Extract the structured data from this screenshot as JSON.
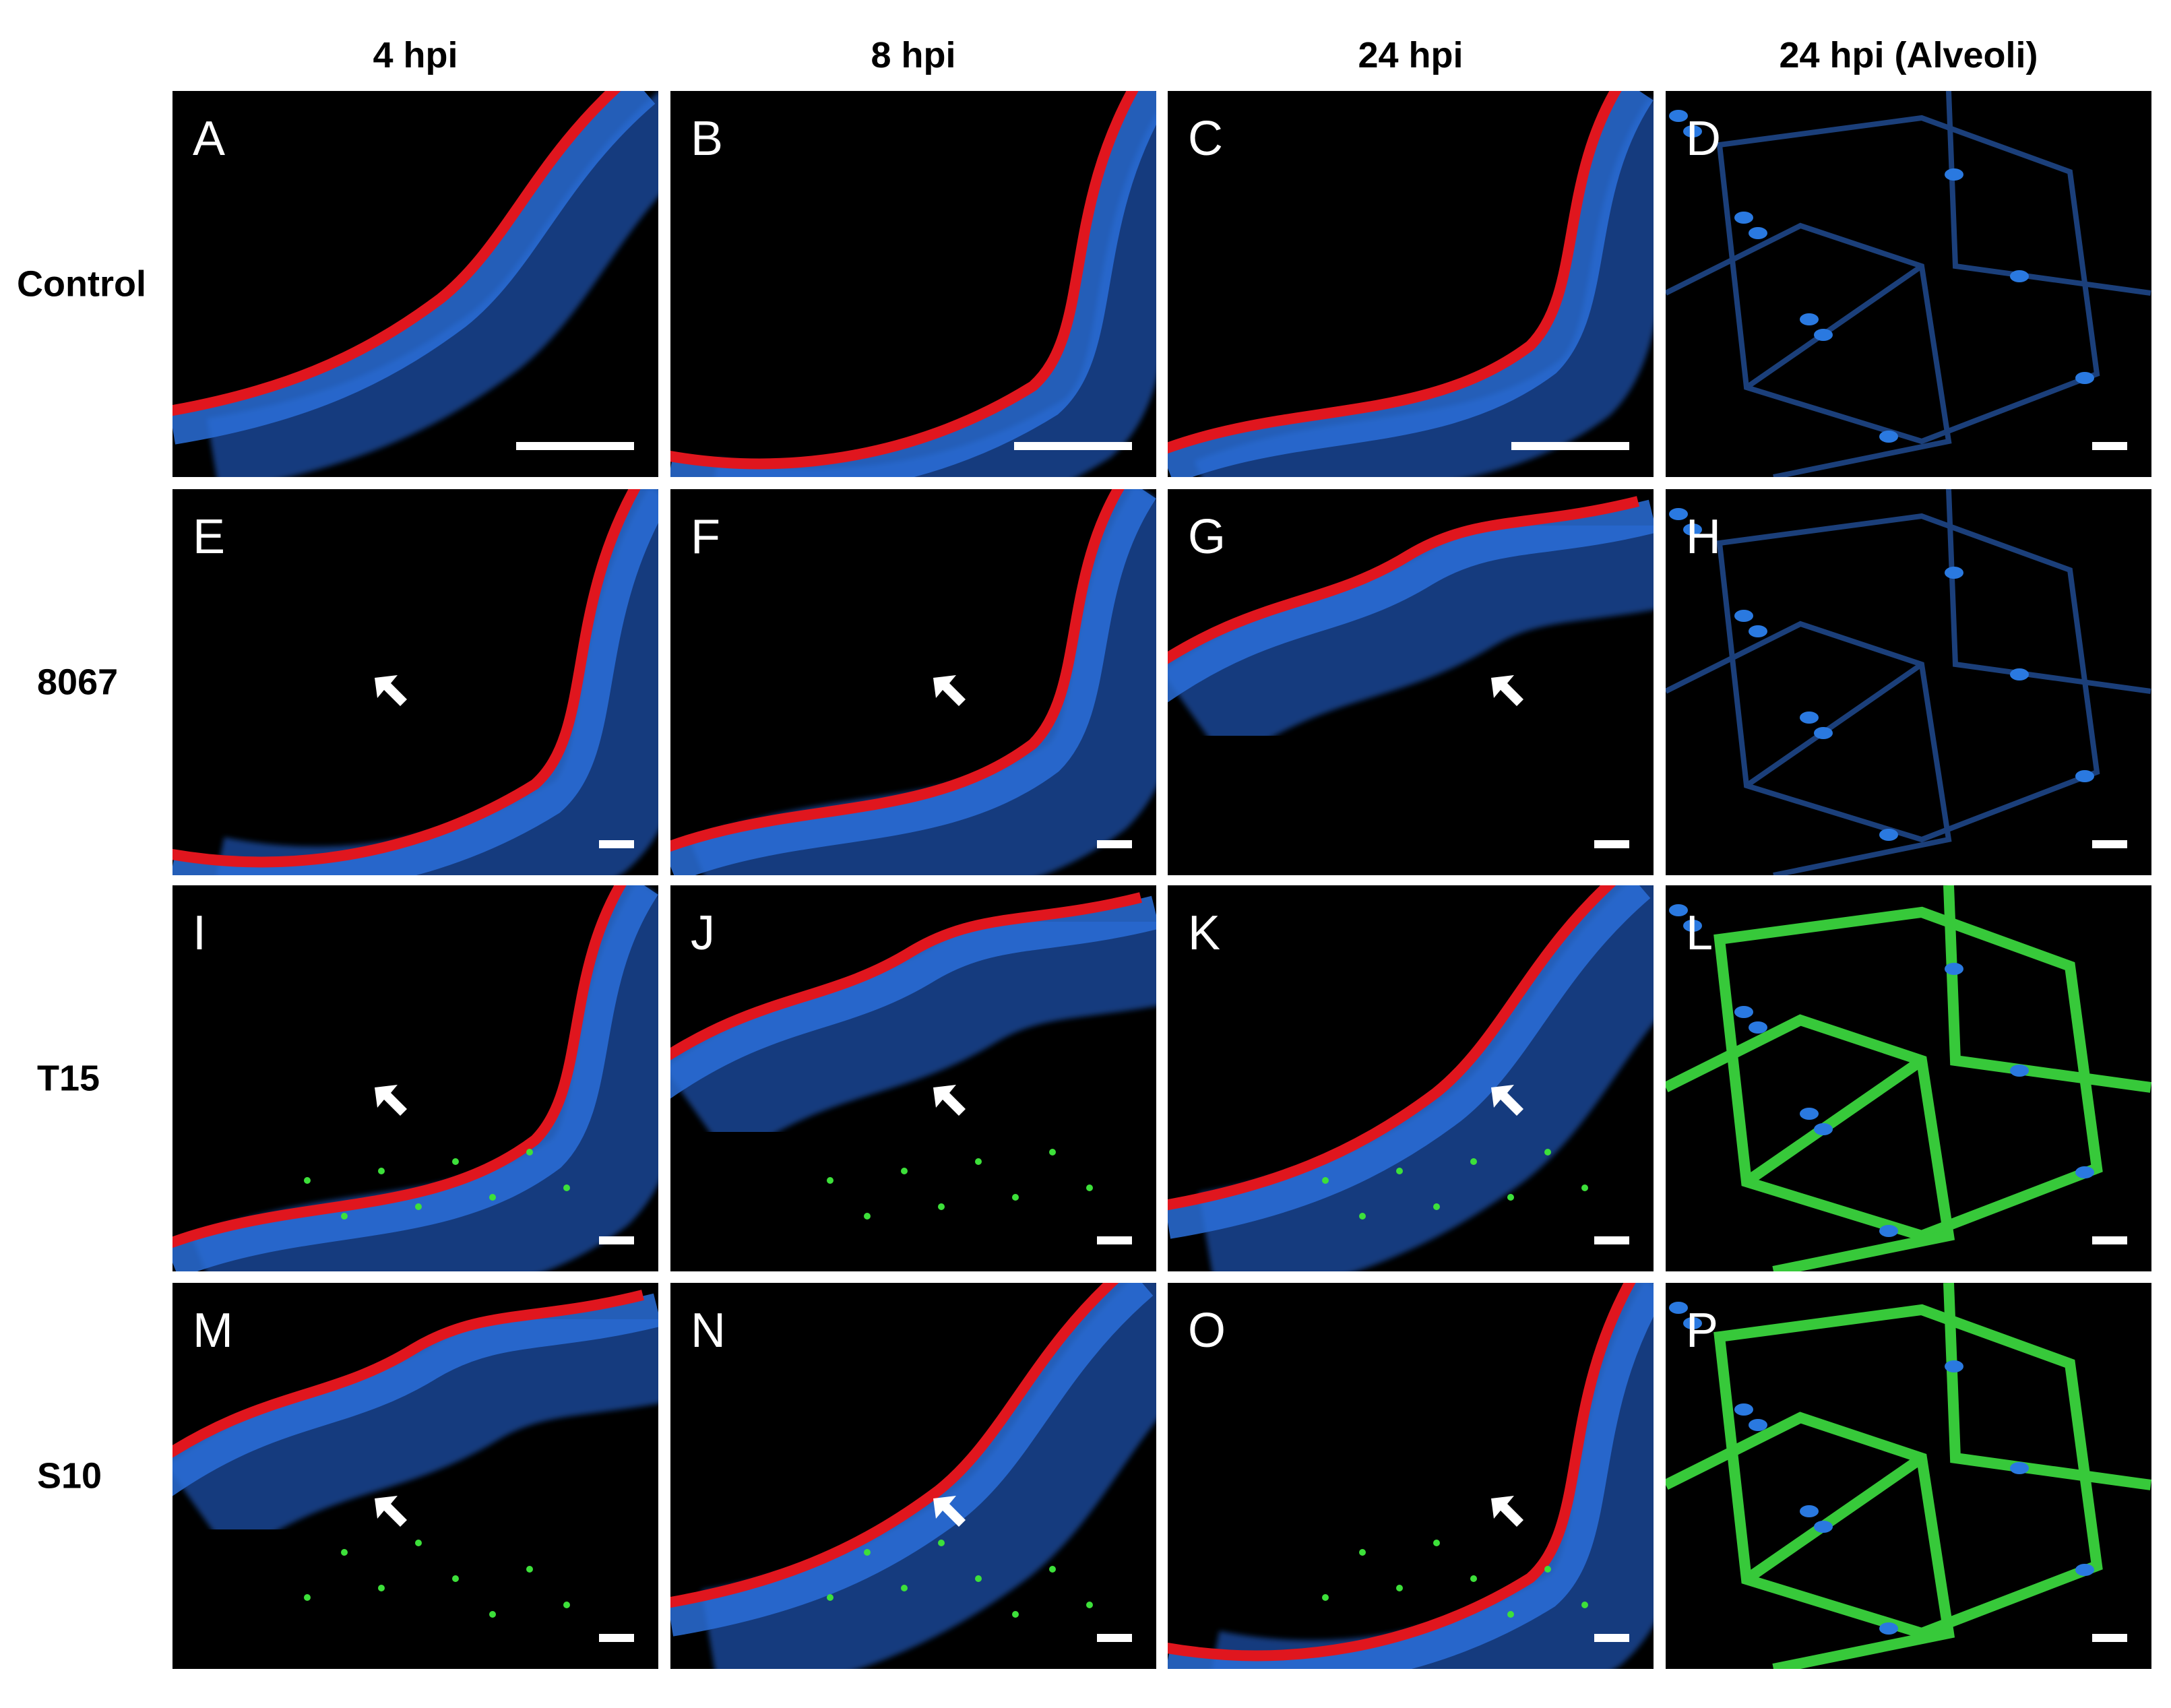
{
  "columns": [
    "4 hpi",
    "8 hpi",
    "24 hpi",
    "24 hpi (Alveoli)"
  ],
  "rows": [
    {
      "label": "Control",
      "panels": [
        "A",
        "B",
        "C",
        "D"
      ]
    },
    {
      "label": "8067",
      "panels": [
        "E",
        "F",
        "G",
        "H"
      ]
    },
    {
      "label": "T15",
      "panels": [
        "I",
        "J",
        "K",
        "L"
      ]
    },
    {
      "label": "S10",
      "panels": [
        "M",
        "N",
        "O",
        "P"
      ]
    }
  ]
}
